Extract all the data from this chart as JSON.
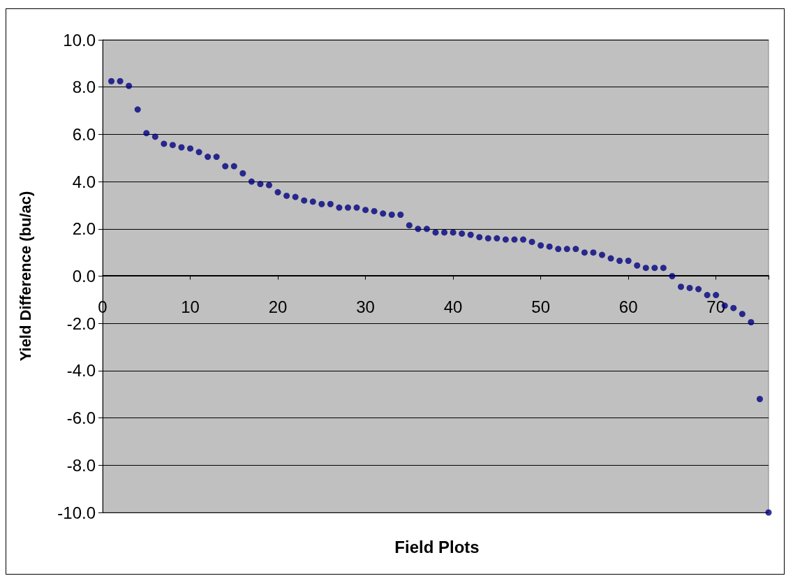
{
  "chart_data": {
    "type": "scatter",
    "xlabel": "Field Plots",
    "ylabel": "Yield Difference (bu/ac)",
    "x": [
      1,
      2,
      3,
      4,
      5,
      6,
      7,
      8,
      9,
      10,
      11,
      12,
      13,
      14,
      15,
      16,
      17,
      18,
      19,
      20,
      21,
      22,
      23,
      24,
      25,
      26,
      27,
      28,
      29,
      30,
      31,
      32,
      33,
      34,
      35,
      36,
      37,
      38,
      39,
      40,
      41,
      42,
      43,
      44,
      45,
      46,
      47,
      48,
      49,
      50,
      51,
      52,
      53,
      54,
      55,
      56,
      57,
      58,
      59,
      60,
      61,
      62,
      63,
      64,
      65,
      66,
      67,
      68,
      69,
      70,
      71,
      72,
      73,
      74,
      75,
      76
    ],
    "series": [
      {
        "color": "#000080",
        "values": [
          8.25,
          8.25,
          8.05,
          7.05,
          6.05,
          5.9,
          5.6,
          5.55,
          5.45,
          5.4,
          5.25,
          5.05,
          5.05,
          4.65,
          4.65,
          4.35,
          4.0,
          3.9,
          3.85,
          3.55,
          3.4,
          3.35,
          3.2,
          3.15,
          3.05,
          3.05,
          2.9,
          2.9,
          2.9,
          2.8,
          2.75,
          2.65,
          2.6,
          2.6,
          2.15,
          2.0,
          2.0,
          1.85,
          1.85,
          1.85,
          1.8,
          1.75,
          1.65,
          1.6,
          1.6,
          1.55,
          1.55,
          1.55,
          1.45,
          1.3,
          1.25,
          1.15,
          1.15,
          1.15,
          1.0,
          1.0,
          0.9,
          0.75,
          0.65,
          0.65,
          0.45,
          0.35,
          0.35,
          0.35,
          0.0,
          -0.45,
          -0.5,
          -0.55,
          -0.8,
          -0.8,
          -1.25,
          -1.35,
          -1.6,
          -1.95,
          -5.2,
          -10.0
        ]
      }
    ],
    "xlim": [
      0,
      76
    ],
    "xticks": [
      0,
      10,
      20,
      30,
      40,
      50,
      60,
      70
    ],
    "ylim": [
      -10,
      10
    ],
    "yticks": [
      {
        "value": -10,
        "label": "-10.0"
      },
      {
        "value": -8,
        "label": "-8.0"
      },
      {
        "value": -6,
        "label": "-6.0"
      },
      {
        "value": -4,
        "label": "-4.0"
      },
      {
        "value": -2,
        "label": "-2.0"
      },
      {
        "value": 0,
        "label": "0.0"
      },
      {
        "value": 2,
        "label": "2.0"
      },
      {
        "value": 4,
        "label": "4.0"
      },
      {
        "value": 6,
        "label": "6.0"
      },
      {
        "value": 8,
        "label": "8.0"
      },
      {
        "value": 10,
        "label": "10.0"
      }
    ],
    "grid": "y",
    "marker": "circle"
  }
}
